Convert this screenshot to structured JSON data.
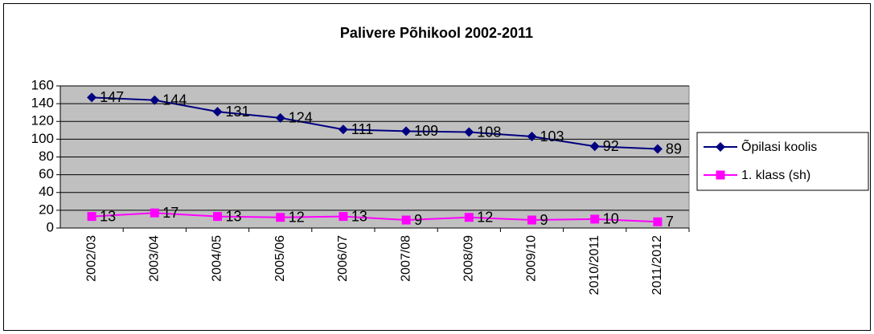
{
  "chart_data": {
    "type": "line",
    "title": "Palivere Põhikool 2002-2011",
    "categories": [
      "2002/03",
      "2003/04",
      "2004/05",
      "2005/06",
      "2006/07",
      "2007/08",
      "2008/09",
      "2009/10",
      "2010/2011",
      "2011/2012"
    ],
    "series": [
      {
        "name": "Õpilasi koolis",
        "color": "#000080",
        "marker": "diamond",
        "values": [
          147,
          144,
          131,
          124,
          111,
          109,
          108,
          103,
          92,
          89
        ]
      },
      {
        "name": "1. klass (sh)",
        "color": "#ff00ff",
        "marker": "square",
        "values": [
          13,
          17,
          13,
          12,
          13,
          9,
          12,
          9,
          10,
          7
        ]
      }
    ],
    "ylim": [
      0,
      160
    ],
    "yticks": [
      0,
      20,
      40,
      60,
      80,
      100,
      120,
      140,
      160
    ],
    "grid": true,
    "legend": "right"
  }
}
